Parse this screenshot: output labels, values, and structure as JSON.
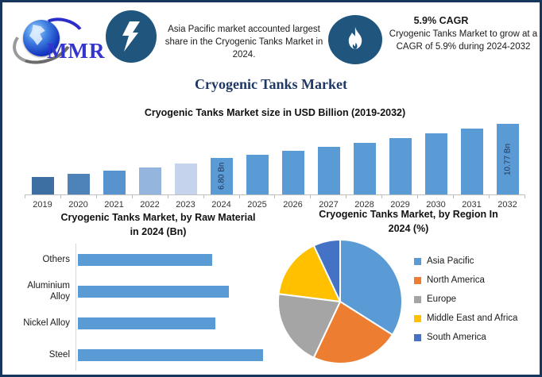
{
  "header": {
    "logo_text": "MMR",
    "highlight1": {
      "icon": "lightning-icon",
      "text": "Asia Pacific market accounted largest share in the Cryogenic Tanks Market in 2024."
    },
    "highlight2": {
      "icon": "flame-icon",
      "title": "5.9% CAGR",
      "text": "Cryogenic Tanks Market to grow at a CAGR of 5.9% during 2024-2032"
    }
  },
  "page_title": "Cryogenic Tanks Market",
  "colors": {
    "border_navy": "#17365d",
    "badge_blue": "#20567e",
    "title_navy": "#1f3864",
    "bar_blue": "#5b9bd5",
    "axis_gray": "#bfbfbf"
  },
  "chart_data": [
    {
      "id": "market_size",
      "type": "bar",
      "title": "Cryogenic Tanks Market size in USD Billion (2019-2032)",
      "ylabel": "USD Billion",
      "categories": [
        "2019",
        "2020",
        "2021",
        "2022",
        "2023",
        "2024",
        "2025",
        "2026",
        "2027",
        "2028",
        "2029",
        "2030",
        "2031",
        "2032"
      ],
      "values": [
        4.65,
        5.0,
        5.32,
        5.72,
        6.15,
        6.8,
        7.2,
        7.63,
        8.08,
        8.55,
        9.06,
        9.59,
        10.16,
        10.77
      ],
      "data_labels": {
        "2024": "6.80 Bn",
        "2032": "10.77 Bn"
      },
      "bar_colors": [
        "#3e6fa3",
        "#4e83b9",
        "#5693cf",
        "#94b6de",
        "#c5d4ec",
        "#5b9bd5",
        "#5b9bd5",
        "#5b9bd5",
        "#5b9bd5",
        "#5b9bd5",
        "#5b9bd5",
        "#5b9bd5",
        "#5b9bd5",
        "#5b9bd5"
      ],
      "ylim": [
        2.6,
        11.0
      ],
      "grid": false,
      "legend": "none"
    },
    {
      "id": "raw_material",
      "type": "bar-horizontal",
      "title_line1": "Cryogenic Tanks Market, by Raw Material",
      "title_line2": "in 2024 (Bn)",
      "categories": [
        "Others",
        "Aluminium Alloy",
        "Nickel Alloy",
        "Steel"
      ],
      "values": [
        1.5,
        1.69,
        1.54,
        2.07
      ],
      "xlim": [
        0,
        2.25
      ],
      "bar_color": "#5b9bd5",
      "grid": false,
      "legend": "none"
    },
    {
      "id": "region_share",
      "type": "pie",
      "title_line1": "Cryogenic Tanks Market, by Region In",
      "title_line2": "2024 (%)",
      "slices": [
        {
          "label": "Asia Pacific",
          "value": 34,
          "color": "#5b9bd5"
        },
        {
          "label": "North America",
          "value": 23,
          "color": "#ed7d31"
        },
        {
          "label": "Europe",
          "value": 20,
          "color": "#a5a5a5"
        },
        {
          "label": "Middle East and Africa",
          "value": 16,
          "color": "#ffc000"
        },
        {
          "label": "South America",
          "value": 7,
          "color": "#4472c4"
        }
      ],
      "start_angle_deg": 0,
      "legend_position": "right"
    }
  ]
}
